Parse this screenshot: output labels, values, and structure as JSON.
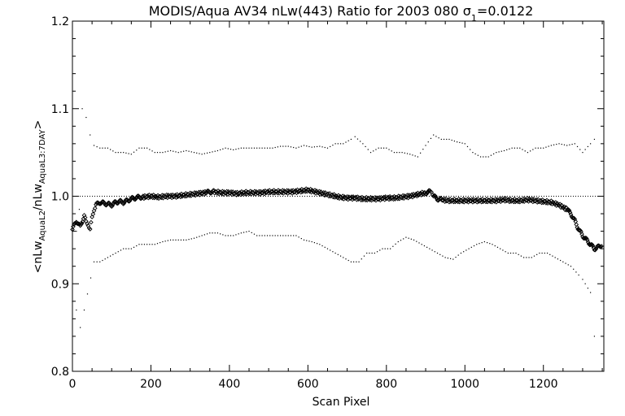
{
  "chart_data": {
    "type": "scatter",
    "title_prefix": "MODIS/Aqua AV34 nLw(443) Ratio for 2003 080 ",
    "title_sigma": "σ",
    "title_sigma_sub": "1",
    "title_suffix": "=0.0122",
    "xlabel": "Scan Pixel",
    "ylabel_parts": {
      "open": "<nLw",
      "sub1": "AquaL2",
      "mid": "/nLw",
      "sub2": "AquaL3:7DAY",
      "close": ">"
    },
    "xlim": [
      0,
      1354
    ],
    "ylim": [
      0.8,
      1.2
    ],
    "x_ticks": [
      0,
      200,
      400,
      600,
      800,
      1000,
      1200
    ],
    "x_tick_labels": [
      "0",
      "200",
      "400",
      "600",
      "800",
      "1000",
      "1200"
    ],
    "y_ticks": [
      0.8,
      0.9,
      1.0,
      1.1,
      1.2
    ],
    "y_tick_labels": [
      "0.8",
      "0.9",
      "1.0",
      "1.1",
      "1.2"
    ],
    "reference_line": 1.0,
    "grid": false,
    "series": [
      {
        "role": "mean",
        "marker": "diamond",
        "points": [
          [
            0,
            0.962
          ],
          [
            10,
            0.972
          ],
          [
            20,
            0.965
          ],
          [
            30,
            0.978
          ],
          [
            35,
            0.97
          ],
          [
            40,
            0.968
          ],
          [
            45,
            0.962
          ],
          [
            50,
            0.975
          ],
          [
            55,
            0.985
          ],
          [
            60,
            0.99
          ],
          [
            70,
            0.993
          ],
          [
            80,
            0.992
          ],
          [
            90,
            0.991
          ],
          [
            100,
            0.99
          ],
          [
            110,
            0.993
          ],
          [
            120,
            0.994
          ],
          [
            130,
            0.993
          ],
          [
            140,
            0.995
          ],
          [
            150,
            0.997
          ],
          [
            160,
            0.998
          ],
          [
            170,
            0.999
          ],
          [
            180,
            0.999
          ],
          [
            200,
            1.0
          ],
          [
            220,
            0.999
          ],
          [
            240,
            1.0
          ],
          [
            260,
            1.0
          ],
          [
            280,
            1.001
          ],
          [
            300,
            1.002
          ],
          [
            320,
            1.003
          ],
          [
            340,
            1.004
          ],
          [
            350,
            1.005
          ],
          [
            360,
            1.005
          ],
          [
            380,
            1.004
          ],
          [
            400,
            1.004
          ],
          [
            420,
            1.003
          ],
          [
            440,
            1.004
          ],
          [
            460,
            1.004
          ],
          [
            480,
            1.004
          ],
          [
            500,
            1.005
          ],
          [
            520,
            1.005
          ],
          [
            540,
            1.005
          ],
          [
            560,
            1.005
          ],
          [
            580,
            1.006
          ],
          [
            600,
            1.007
          ],
          [
            620,
            1.005
          ],
          [
            640,
            1.003
          ],
          [
            660,
            1.001
          ],
          [
            680,
            0.999
          ],
          [
            700,
            0.998
          ],
          [
            720,
            0.998
          ],
          [
            740,
            0.997
          ],
          [
            760,
            0.997
          ],
          [
            780,
            0.997
          ],
          [
            800,
            0.998
          ],
          [
            820,
            0.998
          ],
          [
            840,
            0.999
          ],
          [
            860,
            1.0
          ],
          [
            880,
            1.002
          ],
          [
            900,
            1.004
          ],
          [
            910,
            1.005
          ],
          [
            915,
            1.006
          ],
          [
            920,
            1.0
          ],
          [
            930,
            0.997
          ],
          [
            940,
            0.996
          ],
          [
            960,
            0.995
          ],
          [
            980,
            0.995
          ],
          [
            1000,
            0.995
          ],
          [
            1020,
            0.995
          ],
          [
            1040,
            0.995
          ],
          [
            1060,
            0.995
          ],
          [
            1080,
            0.995
          ],
          [
            1100,
            0.996
          ],
          [
            1120,
            0.995
          ],
          [
            1140,
            0.995
          ],
          [
            1160,
            0.996
          ],
          [
            1180,
            0.995
          ],
          [
            1200,
            0.994
          ],
          [
            1220,
            0.993
          ],
          [
            1240,
            0.99
          ],
          [
            1260,
            0.985
          ],
          [
            1270,
            0.98
          ],
          [
            1280,
            0.972
          ],
          [
            1290,
            0.962
          ],
          [
            1300,
            0.955
          ],
          [
            1310,
            0.95
          ],
          [
            1320,
            0.945
          ],
          [
            1330,
            0.94
          ],
          [
            1340,
            0.942
          ],
          [
            1350,
            0.945
          ]
        ]
      },
      {
        "role": "upper",
        "marker": "dot",
        "points": [
          [
            0,
            0.88
          ],
          [
            10,
            0.87
          ],
          [
            25,
            1.1
          ],
          [
            35,
            1.09
          ],
          [
            45,
            1.07
          ],
          [
            55,
            1.058
          ],
          [
            70,
            1.055
          ],
          [
            90,
            1.055
          ],
          [
            110,
            1.05
          ],
          [
            130,
            1.05
          ],
          [
            150,
            1.048
          ],
          [
            170,
            1.055
          ],
          [
            190,
            1.055
          ],
          [
            210,
            1.05
          ],
          [
            230,
            1.05
          ],
          [
            250,
            1.052
          ],
          [
            270,
            1.05
          ],
          [
            290,
            1.052
          ],
          [
            310,
            1.05
          ],
          [
            330,
            1.048
          ],
          [
            350,
            1.05
          ],
          [
            370,
            1.052
          ],
          [
            390,
            1.055
          ],
          [
            410,
            1.053
          ],
          [
            430,
            1.055
          ],
          [
            450,
            1.055
          ],
          [
            470,
            1.055
          ],
          [
            490,
            1.055
          ],
          [
            510,
            1.055
          ],
          [
            530,
            1.057
          ],
          [
            550,
            1.057
          ],
          [
            570,
            1.055
          ],
          [
            590,
            1.058
          ],
          [
            610,
            1.056
          ],
          [
            630,
            1.057
          ],
          [
            650,
            1.055
          ],
          [
            670,
            1.06
          ],
          [
            690,
            1.06
          ],
          [
            710,
            1.065
          ],
          [
            720,
            1.068
          ],
          [
            740,
            1.06
          ],
          [
            760,
            1.05
          ],
          [
            780,
            1.055
          ],
          [
            800,
            1.055
          ],
          [
            820,
            1.05
          ],
          [
            840,
            1.05
          ],
          [
            860,
            1.048
          ],
          [
            880,
            1.045
          ],
          [
            900,
            1.058
          ],
          [
            920,
            1.07
          ],
          [
            940,
            1.065
          ],
          [
            960,
            1.065
          ],
          [
            980,
            1.062
          ],
          [
            1000,
            1.06
          ],
          [
            1020,
            1.05
          ],
          [
            1040,
            1.045
          ],
          [
            1060,
            1.045
          ],
          [
            1080,
            1.05
          ],
          [
            1100,
            1.052
          ],
          [
            1120,
            1.055
          ],
          [
            1140,
            1.055
          ],
          [
            1160,
            1.05
          ],
          [
            1180,
            1.055
          ],
          [
            1200,
            1.055
          ],
          [
            1220,
            1.058
          ],
          [
            1240,
            1.06
          ],
          [
            1260,
            1.058
          ],
          [
            1280,
            1.06
          ],
          [
            1300,
            1.05
          ],
          [
            1320,
            1.06
          ],
          [
            1330,
            1.065
          ],
          [
            1340,
            1.08
          ]
        ]
      },
      {
        "role": "lower",
        "marker": "dot",
        "points": [
          [
            0,
            0.96
          ],
          [
            10,
            0.96
          ],
          [
            20,
            0.85
          ],
          [
            30,
            0.87
          ],
          [
            55,
            0.925
          ],
          [
            70,
            0.925
          ],
          [
            90,
            0.93
          ],
          [
            110,
            0.935
          ],
          [
            130,
            0.94
          ],
          [
            150,
            0.94
          ],
          [
            170,
            0.945
          ],
          [
            190,
            0.945
          ],
          [
            210,
            0.945
          ],
          [
            230,
            0.948
          ],
          [
            250,
            0.95
          ],
          [
            270,
            0.95
          ],
          [
            290,
            0.95
          ],
          [
            310,
            0.952
          ],
          [
            330,
            0.955
          ],
          [
            350,
            0.958
          ],
          [
            370,
            0.958
          ],
          [
            390,
            0.955
          ],
          [
            410,
            0.955
          ],
          [
            430,
            0.958
          ],
          [
            450,
            0.96
          ],
          [
            470,
            0.955
          ],
          [
            490,
            0.955
          ],
          [
            510,
            0.955
          ],
          [
            530,
            0.955
          ],
          [
            550,
            0.955
          ],
          [
            570,
            0.955
          ],
          [
            590,
            0.95
          ],
          [
            610,
            0.948
          ],
          [
            630,
            0.945
          ],
          [
            650,
            0.94
          ],
          [
            670,
            0.935
          ],
          [
            690,
            0.93
          ],
          [
            710,
            0.925
          ],
          [
            730,
            0.925
          ],
          [
            750,
            0.935
          ],
          [
            770,
            0.935
          ],
          [
            790,
            0.94
          ],
          [
            810,
            0.94
          ],
          [
            830,
            0.948
          ],
          [
            850,
            0.953
          ],
          [
            870,
            0.95
          ],
          [
            890,
            0.945
          ],
          [
            910,
            0.94
          ],
          [
            930,
            0.935
          ],
          [
            950,
            0.93
          ],
          [
            970,
            0.928
          ],
          [
            990,
            0.935
          ],
          [
            1010,
            0.94
          ],
          [
            1030,
            0.945
          ],
          [
            1050,
            0.948
          ],
          [
            1070,
            0.945
          ],
          [
            1090,
            0.94
          ],
          [
            1110,
            0.935
          ],
          [
            1130,
            0.935
          ],
          [
            1150,
            0.93
          ],
          [
            1170,
            0.93
          ],
          [
            1190,
            0.935
          ],
          [
            1210,
            0.935
          ],
          [
            1230,
            0.93
          ],
          [
            1250,
            0.925
          ],
          [
            1270,
            0.92
          ],
          [
            1290,
            0.91
          ],
          [
            1300,
            0.905
          ],
          [
            1320,
            0.89
          ],
          [
            1330,
            0.84
          ],
          [
            1340,
            0.835
          ]
        ]
      }
    ]
  }
}
